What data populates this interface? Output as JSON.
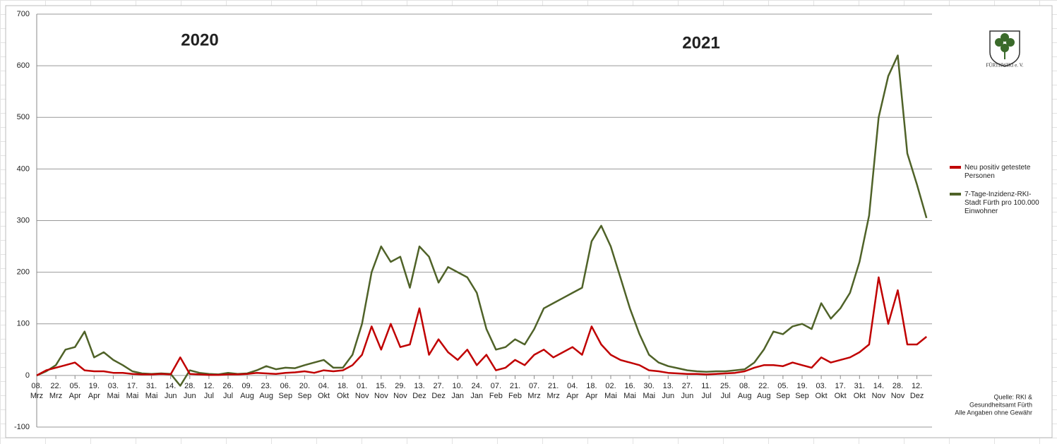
{
  "chart_data": {
    "type": "line",
    "annotations": [
      "2020",
      "2021"
    ],
    "logo_text": "FÜRTHWIKI e. V.",
    "source_lines": [
      "Quelle: RKI &",
      "Gesundheitsamt Fürth",
      "Alle Angaben ohne Gewähr"
    ],
    "categories": [
      "08. Mrz",
      null,
      "22. Mrz",
      null,
      "05. Apr",
      null,
      "19. Apr",
      null,
      "03. Mai",
      null,
      "17. Mai",
      null,
      "31. Mai",
      null,
      "14. Jun",
      null,
      "28. Jun",
      null,
      "12. Jul",
      null,
      "26. Jul",
      null,
      "09. Aug",
      null,
      "23. Aug",
      null,
      "06. Sep",
      null,
      "20. Sep",
      null,
      "04. Okt",
      null,
      "18. Okt",
      null,
      "01. Nov",
      null,
      "15. Nov",
      null,
      "29. Nov",
      null,
      "13. Dez",
      null,
      "27. Dez",
      null,
      "10. Jan",
      null,
      "24. Jan",
      null,
      "07. Feb",
      null,
      "21. Feb",
      null,
      "07. Mrz",
      null,
      "21. Mrz",
      null,
      "04. Apr",
      null,
      "18. Apr",
      null,
      "02. Mai",
      null,
      "16. Mai",
      null,
      "30. Mai",
      null,
      "13. Jun",
      null,
      "27. Jun",
      null,
      "11. Jul",
      null,
      "25. Jul",
      null,
      "08. Aug",
      null,
      "22. Aug",
      null,
      "05. Sep",
      null,
      "19. Sep",
      null,
      "03. Okt",
      null,
      "17. Okt",
      null,
      "31. Okt",
      null,
      "14. Nov",
      null,
      "28. Nov",
      null,
      "12. Dez",
      null
    ],
    "series": [
      {
        "name": "Neu positiv getestete Personen",
        "color": "#c00000",
        "values": [
          0,
          10,
          15,
          20,
          25,
          10,
          8,
          8,
          5,
          5,
          3,
          2,
          2,
          3,
          2,
          35,
          3,
          2,
          1,
          1,
          2,
          2,
          3,
          5,
          4,
          3,
          5,
          6,
          8,
          5,
          10,
          8,
          10,
          20,
          40,
          95,
          50,
          100,
          55,
          60,
          130,
          40,
          70,
          45,
          30,
          50,
          20,
          40,
          10,
          15,
          30,
          20,
          40,
          50,
          35,
          45,
          55,
          40,
          95,
          60,
          40,
          30,
          25,
          20,
          10,
          8,
          5,
          4,
          3,
          3,
          2,
          3,
          4,
          5,
          8,
          15,
          20,
          20,
          18,
          25,
          20,
          15,
          35,
          25,
          30,
          35,
          45,
          60,
          190,
          100,
          165,
          60,
          60,
          75
        ]
      },
      {
        "name": "7-Tage-Inzidenz-RKI-Stadt Fürth pro 100.000 Einwohner",
        "color": "#4f6228",
        "values": [
          0,
          8,
          20,
          50,
          55,
          85,
          35,
          45,
          30,
          20,
          8,
          4,
          3,
          4,
          3,
          -20,
          10,
          5,
          3,
          2,
          5,
          3,
          4,
          10,
          18,
          12,
          15,
          14,
          20,
          25,
          30,
          15,
          15,
          40,
          100,
          200,
          250,
          220,
          230,
          170,
          250,
          230,
          180,
          210,
          200,
          190,
          160,
          90,
          50,
          55,
          70,
          60,
          90,
          130,
          140,
          150,
          160,
          170,
          260,
          290,
          250,
          190,
          130,
          80,
          40,
          25,
          18,
          14,
          10,
          8,
          7,
          8,
          8,
          10,
          12,
          25,
          50,
          85,
          80,
          95,
          100,
          90,
          140,
          110,
          130,
          160,
          220,
          310,
          500,
          580,
          620,
          430,
          370,
          305
        ]
      }
    ],
    "ylim": [
      -100,
      700
    ],
    "yticks": [
      -100,
      0,
      100,
      200,
      300,
      400,
      500,
      600,
      700
    ],
    "grid": true
  }
}
